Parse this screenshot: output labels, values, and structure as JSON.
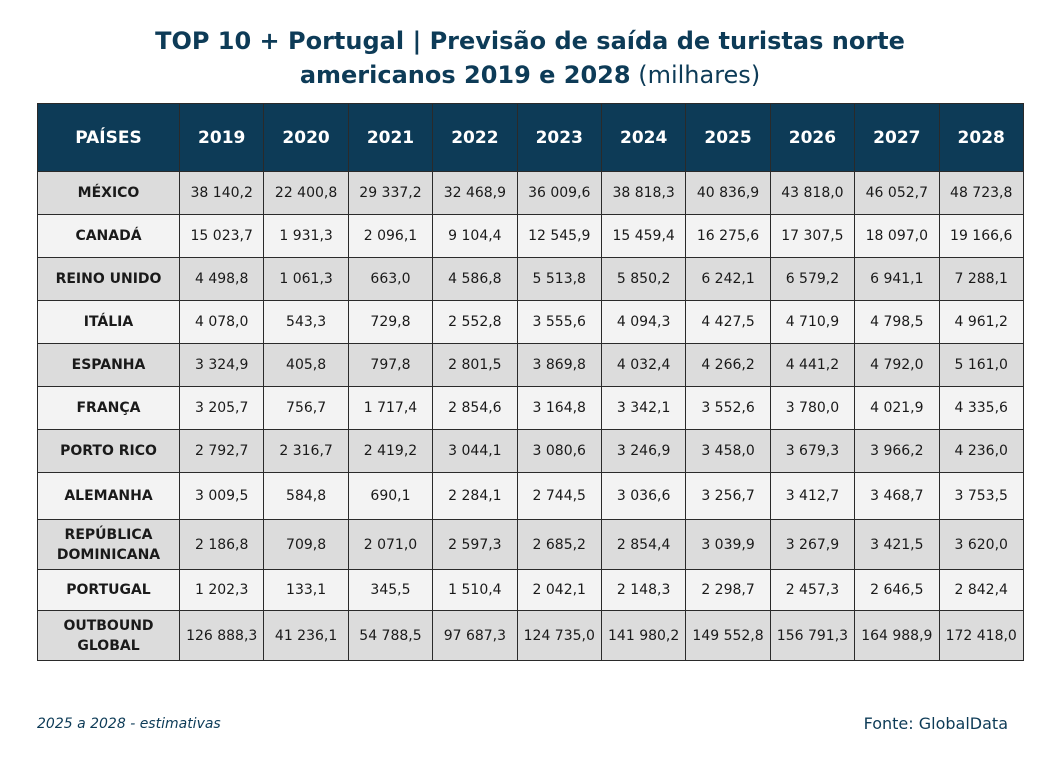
{
  "title": {
    "line1": "TOP 10 + Portugal | Previsão de saída de turistas norte",
    "line2_bold": "americanos 2019 e 2028",
    "line2_normal": " (milhares)"
  },
  "table": {
    "header": [
      "PAÍSES",
      "2019",
      "2020",
      "2021",
      "2022",
      "2023",
      "2024",
      "2025",
      "2026",
      "2027",
      "2028"
    ],
    "rows": [
      {
        "country": "MÉXICO",
        "values": [
          "38 140,2",
          "22 400,8",
          "29 337,2",
          "32 468,9",
          "36 009,6",
          "38 818,3",
          "40 836,9",
          "43 818,0",
          "46 052,7",
          "48 723,8"
        ]
      },
      {
        "country": "CANADÁ",
        "values": [
          "15 023,7",
          "1 931,3",
          "2 096,1",
          "9 104,4",
          "12 545,9",
          "15 459,4",
          "16 275,6",
          "17 307,5",
          "18 097,0",
          "19 166,6"
        ]
      },
      {
        "country": "REINO UNIDO",
        "values": [
          "4 498,8",
          "1 061,3",
          "663,0",
          "4 586,8",
          "5 513,8",
          "5 850,2",
          "6 242,1",
          "6 579,2",
          "6 941,1",
          "7 288,1"
        ]
      },
      {
        "country": "ITÁLIA",
        "values": [
          "4 078,0",
          "543,3",
          "729,8",
          "2 552,8",
          "3 555,6",
          "4 094,3",
          "4 427,5",
          "4 710,9",
          "4 798,5",
          "4 961,2"
        ]
      },
      {
        "country": "ESPANHA",
        "values": [
          "3 324,9",
          "405,8",
          "797,8",
          "2 801,5",
          "3 869,8",
          "4 032,4",
          "4 266,2",
          "4 441,2",
          "4 792,0",
          "5 161,0"
        ]
      },
      {
        "country": "FRANÇA",
        "values": [
          "3 205,7",
          "756,7",
          "1 717,4",
          "2 854,6",
          "3 164,8",
          "3 342,1",
          "3 552,6",
          "3 780,0",
          "4 021,9",
          "4 335,6"
        ]
      },
      {
        "country": "PORTO RICO",
        "values": [
          "2 792,7",
          "2 316,7",
          "2 419,2",
          "3 044,1",
          "3 080,6",
          "3 246,9",
          "3 458,0",
          "3 679,3",
          "3 966,2",
          "4 236,0"
        ]
      },
      {
        "country": "ALEMANHA",
        "values": [
          "3 009,5",
          "584,8",
          "690,1",
          "2 284,1",
          "2 744,5",
          "3 036,6",
          "3 256,7",
          "3 412,7",
          "3 468,7",
          "3 753,5"
        ]
      },
      {
        "country": "REPÚBLICA DOMINICANA",
        "values": [
          "2 186,8",
          "709,8",
          "2 071,0",
          "2 597,3",
          "2 685,2",
          "2 854,4",
          "3 039,9",
          "3 267,9",
          "3 421,5",
          "3 620,0"
        ]
      },
      {
        "country": "PORTUGAL",
        "values": [
          "1 202,3",
          "133,1",
          "345,5",
          "1 510,4",
          "2 042,1",
          "2 148,3",
          "2 298,7",
          "2 457,3",
          "2 646,5",
          "2 842,4"
        ]
      },
      {
        "country": "OUTBOUND GLOBAL",
        "values": [
          "126 888,3",
          "41 236,1",
          "54 788,5",
          "97 687,3",
          "124 735,0",
          "141 980,2",
          "149 552,8",
          "156 791,3",
          "164 988,9",
          "172 418,0"
        ]
      }
    ]
  },
  "footer": {
    "note": "2025 a 2028 - estimativas",
    "source": "Fonte: GlobalData"
  },
  "colors": {
    "header_bg": "#0d3b57",
    "header_text": "#ffffff",
    "row_alt": "#dcdcdc",
    "row_plain": "#f3f3f3",
    "title": "#0d3b57"
  }
}
